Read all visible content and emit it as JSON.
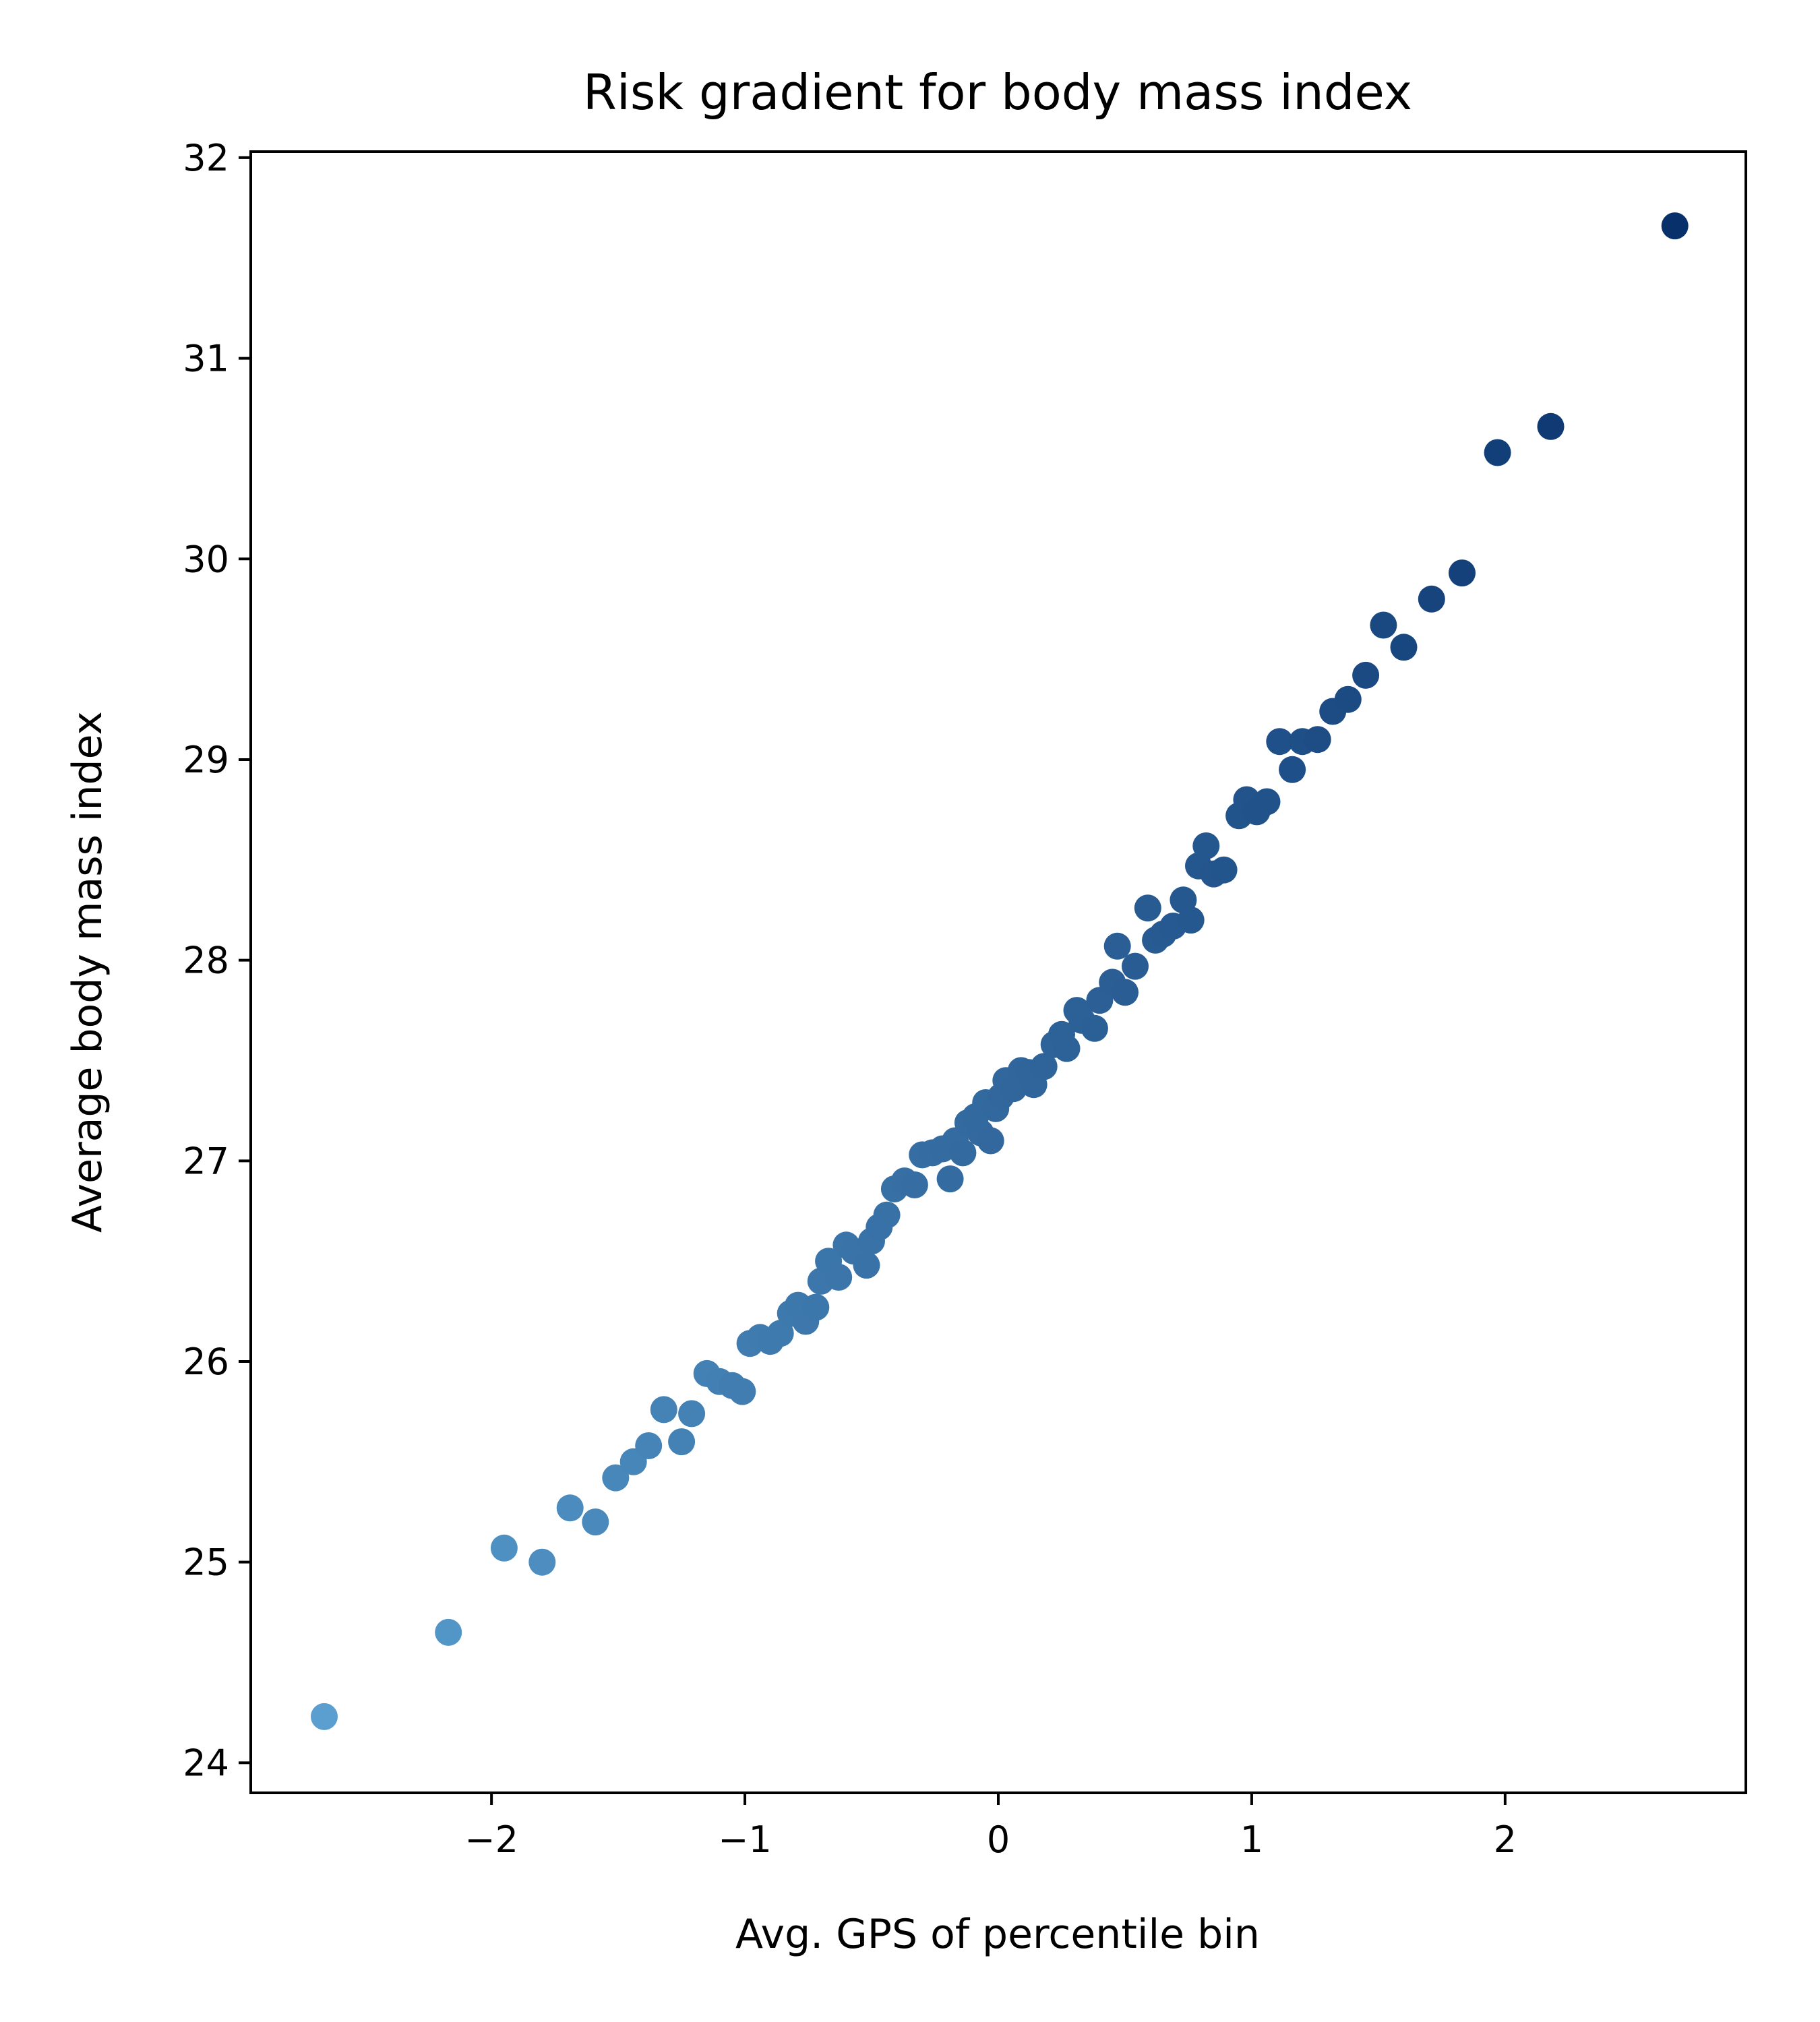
{
  "chart_data": {
    "type": "scatter",
    "title": "Risk gradient for body mass index",
    "xlabel": "Avg. GPS of percentile bin",
    "ylabel": "Average body mass index",
    "xlim": [
      -2.95,
      2.95
    ],
    "ylim": [
      23.85,
      32.03
    ],
    "xticks": [
      -2,
      -1,
      0,
      1,
      2
    ],
    "xtick_labels": [
      "−2",
      "−1",
      "0",
      "1",
      "2"
    ],
    "yticks": [
      24,
      25,
      26,
      27,
      28,
      29,
      30,
      31,
      32
    ],
    "ytick_labels": [
      "24",
      "25",
      "26",
      "27",
      "28",
      "29",
      "30",
      "31",
      "32"
    ],
    "grid": false,
    "colormap": "Blues",
    "color_light": "#5a9fd0",
    "color_dark": "#08306b",
    "series": [
      {
        "points": [
          [
            -2.66,
            24.23
          ],
          [
            -2.17,
            24.65
          ],
          [
            -1.95,
            25.07
          ],
          [
            -1.8,
            25.0
          ],
          [
            -1.69,
            25.27
          ],
          [
            -1.59,
            25.2
          ],
          [
            -1.51,
            25.42
          ],
          [
            -1.44,
            25.5
          ],
          [
            -1.38,
            25.58
          ],
          [
            -1.32,
            25.76
          ],
          [
            -1.25,
            25.6
          ],
          [
            -1.21,
            25.74
          ],
          [
            -1.15,
            25.94
          ],
          [
            -1.1,
            25.9
          ],
          [
            -1.05,
            25.88
          ],
          [
            -1.01,
            25.85
          ],
          [
            -0.98,
            26.09
          ],
          [
            -0.94,
            26.12
          ],
          [
            -0.9,
            26.1
          ],
          [
            -0.86,
            26.14
          ],
          [
            -0.82,
            26.24
          ],
          [
            -0.79,
            26.28
          ],
          [
            -0.76,
            26.2
          ],
          [
            -0.72,
            26.27
          ],
          [
            -0.7,
            26.4
          ],
          [
            -0.67,
            26.5
          ],
          [
            -0.63,
            26.42
          ],
          [
            -0.6,
            26.58
          ],
          [
            -0.57,
            26.55
          ],
          [
            -0.52,
            26.48
          ],
          [
            -0.5,
            26.6
          ],
          [
            -0.47,
            26.67
          ],
          [
            -0.44,
            26.73
          ],
          [
            -0.41,
            26.86
          ],
          [
            -0.37,
            26.9
          ],
          [
            -0.33,
            26.88
          ],
          [
            -0.3,
            27.03
          ],
          [
            -0.26,
            27.04
          ],
          [
            -0.22,
            27.06
          ],
          [
            -0.19,
            26.91
          ],
          [
            -0.17,
            27.1
          ],
          [
            -0.14,
            27.04
          ],
          [
            -0.12,
            27.19
          ],
          [
            -0.09,
            27.22
          ],
          [
            -0.07,
            27.14
          ],
          [
            -0.05,
            27.29
          ],
          [
            -0.03,
            27.1
          ],
          [
            -0.01,
            27.26
          ],
          [
            0.01,
            27.32
          ],
          [
            0.03,
            27.4
          ],
          [
            0.06,
            27.36
          ],
          [
            0.09,
            27.45
          ],
          [
            0.12,
            27.44
          ],
          [
            0.14,
            27.38
          ],
          [
            0.18,
            27.47
          ],
          [
            0.22,
            27.58
          ],
          [
            0.25,
            27.63
          ],
          [
            0.27,
            27.56
          ],
          [
            0.31,
            27.75
          ],
          [
            0.33,
            27.7
          ],
          [
            0.38,
            27.66
          ],
          [
            0.4,
            27.8
          ],
          [
            0.45,
            27.89
          ],
          [
            0.47,
            28.07
          ],
          [
            0.5,
            27.84
          ],
          [
            0.54,
            27.97
          ],
          [
            0.59,
            28.26
          ],
          [
            0.62,
            28.1
          ],
          [
            0.65,
            28.13
          ],
          [
            0.69,
            28.17
          ],
          [
            0.73,
            28.3
          ],
          [
            0.76,
            28.2
          ],
          [
            0.79,
            28.47
          ],
          [
            0.82,
            28.57
          ],
          [
            0.85,
            28.43
          ],
          [
            0.89,
            28.45
          ],
          [
            0.95,
            28.72
          ],
          [
            0.98,
            28.8
          ],
          [
            1.02,
            28.74
          ],
          [
            1.06,
            28.79
          ],
          [
            1.11,
            29.09
          ],
          [
            1.16,
            28.95
          ],
          [
            1.2,
            29.09
          ],
          [
            1.26,
            29.1
          ],
          [
            1.32,
            29.24
          ],
          [
            1.38,
            29.3
          ],
          [
            1.45,
            29.42
          ],
          [
            1.52,
            29.67
          ],
          [
            1.6,
            29.56
          ],
          [
            1.71,
            29.8
          ],
          [
            1.83,
            29.93
          ],
          [
            1.97,
            30.53
          ],
          [
            2.18,
            30.66
          ],
          [
            2.67,
            31.66
          ]
        ]
      }
    ]
  }
}
